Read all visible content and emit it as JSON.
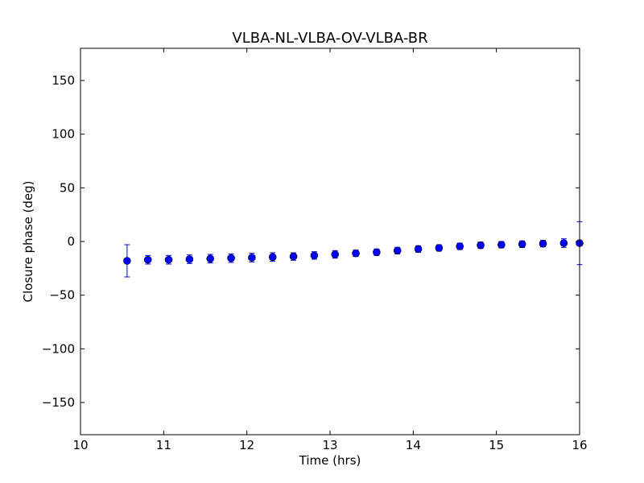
{
  "chart_data": {
    "type": "scatter",
    "title": "VLBA-NL-VLBA-OV-VLBA-BR",
    "xlabel": "Time (hrs)",
    "ylabel": "Closure phase (deg)",
    "xlim": [
      10,
      16
    ],
    "ylim": [
      -180,
      180
    ],
    "xticks": [
      10,
      11,
      12,
      13,
      14,
      15,
      16
    ],
    "xtick_labels": [
      "10",
      "11",
      "12",
      "13",
      "14",
      "15",
      "16"
    ],
    "yticks": [
      -150,
      -100,
      -50,
      0,
      50,
      100,
      150
    ],
    "ytick_labels": [
      "−150",
      "−100",
      "−50",
      "0",
      "50",
      "100",
      "150"
    ],
    "grid": false,
    "marker_color": "#0000ff",
    "errorbar_color": "#0000ff",
    "series": [
      {
        "x": [
          10.56,
          10.81,
          11.06,
          11.31,
          11.56,
          11.81,
          12.06,
          12.31,
          12.56,
          12.81,
          13.06,
          13.31,
          13.56,
          13.81,
          14.06,
          14.31,
          14.56,
          14.81,
          15.06,
          15.31,
          15.56,
          15.81,
          16.0
        ],
        "y": [
          -18,
          -17,
          -17,
          -16.5,
          -16,
          -15.5,
          -15,
          -14.5,
          -14,
          -13,
          -12,
          -11,
          -10,
          -8.5,
          -7,
          -6,
          -4.5,
          -3.5,
          -3,
          -2.5,
          -2,
          -1.5,
          -1.5
        ],
        "error": [
          15,
          4,
          4,
          4,
          4,
          4,
          4,
          4,
          3.5,
          3.5,
          3.5,
          3,
          3,
          3,
          3,
          3,
          3,
          3,
          3,
          3,
          3,
          4,
          20
        ]
      }
    ]
  }
}
